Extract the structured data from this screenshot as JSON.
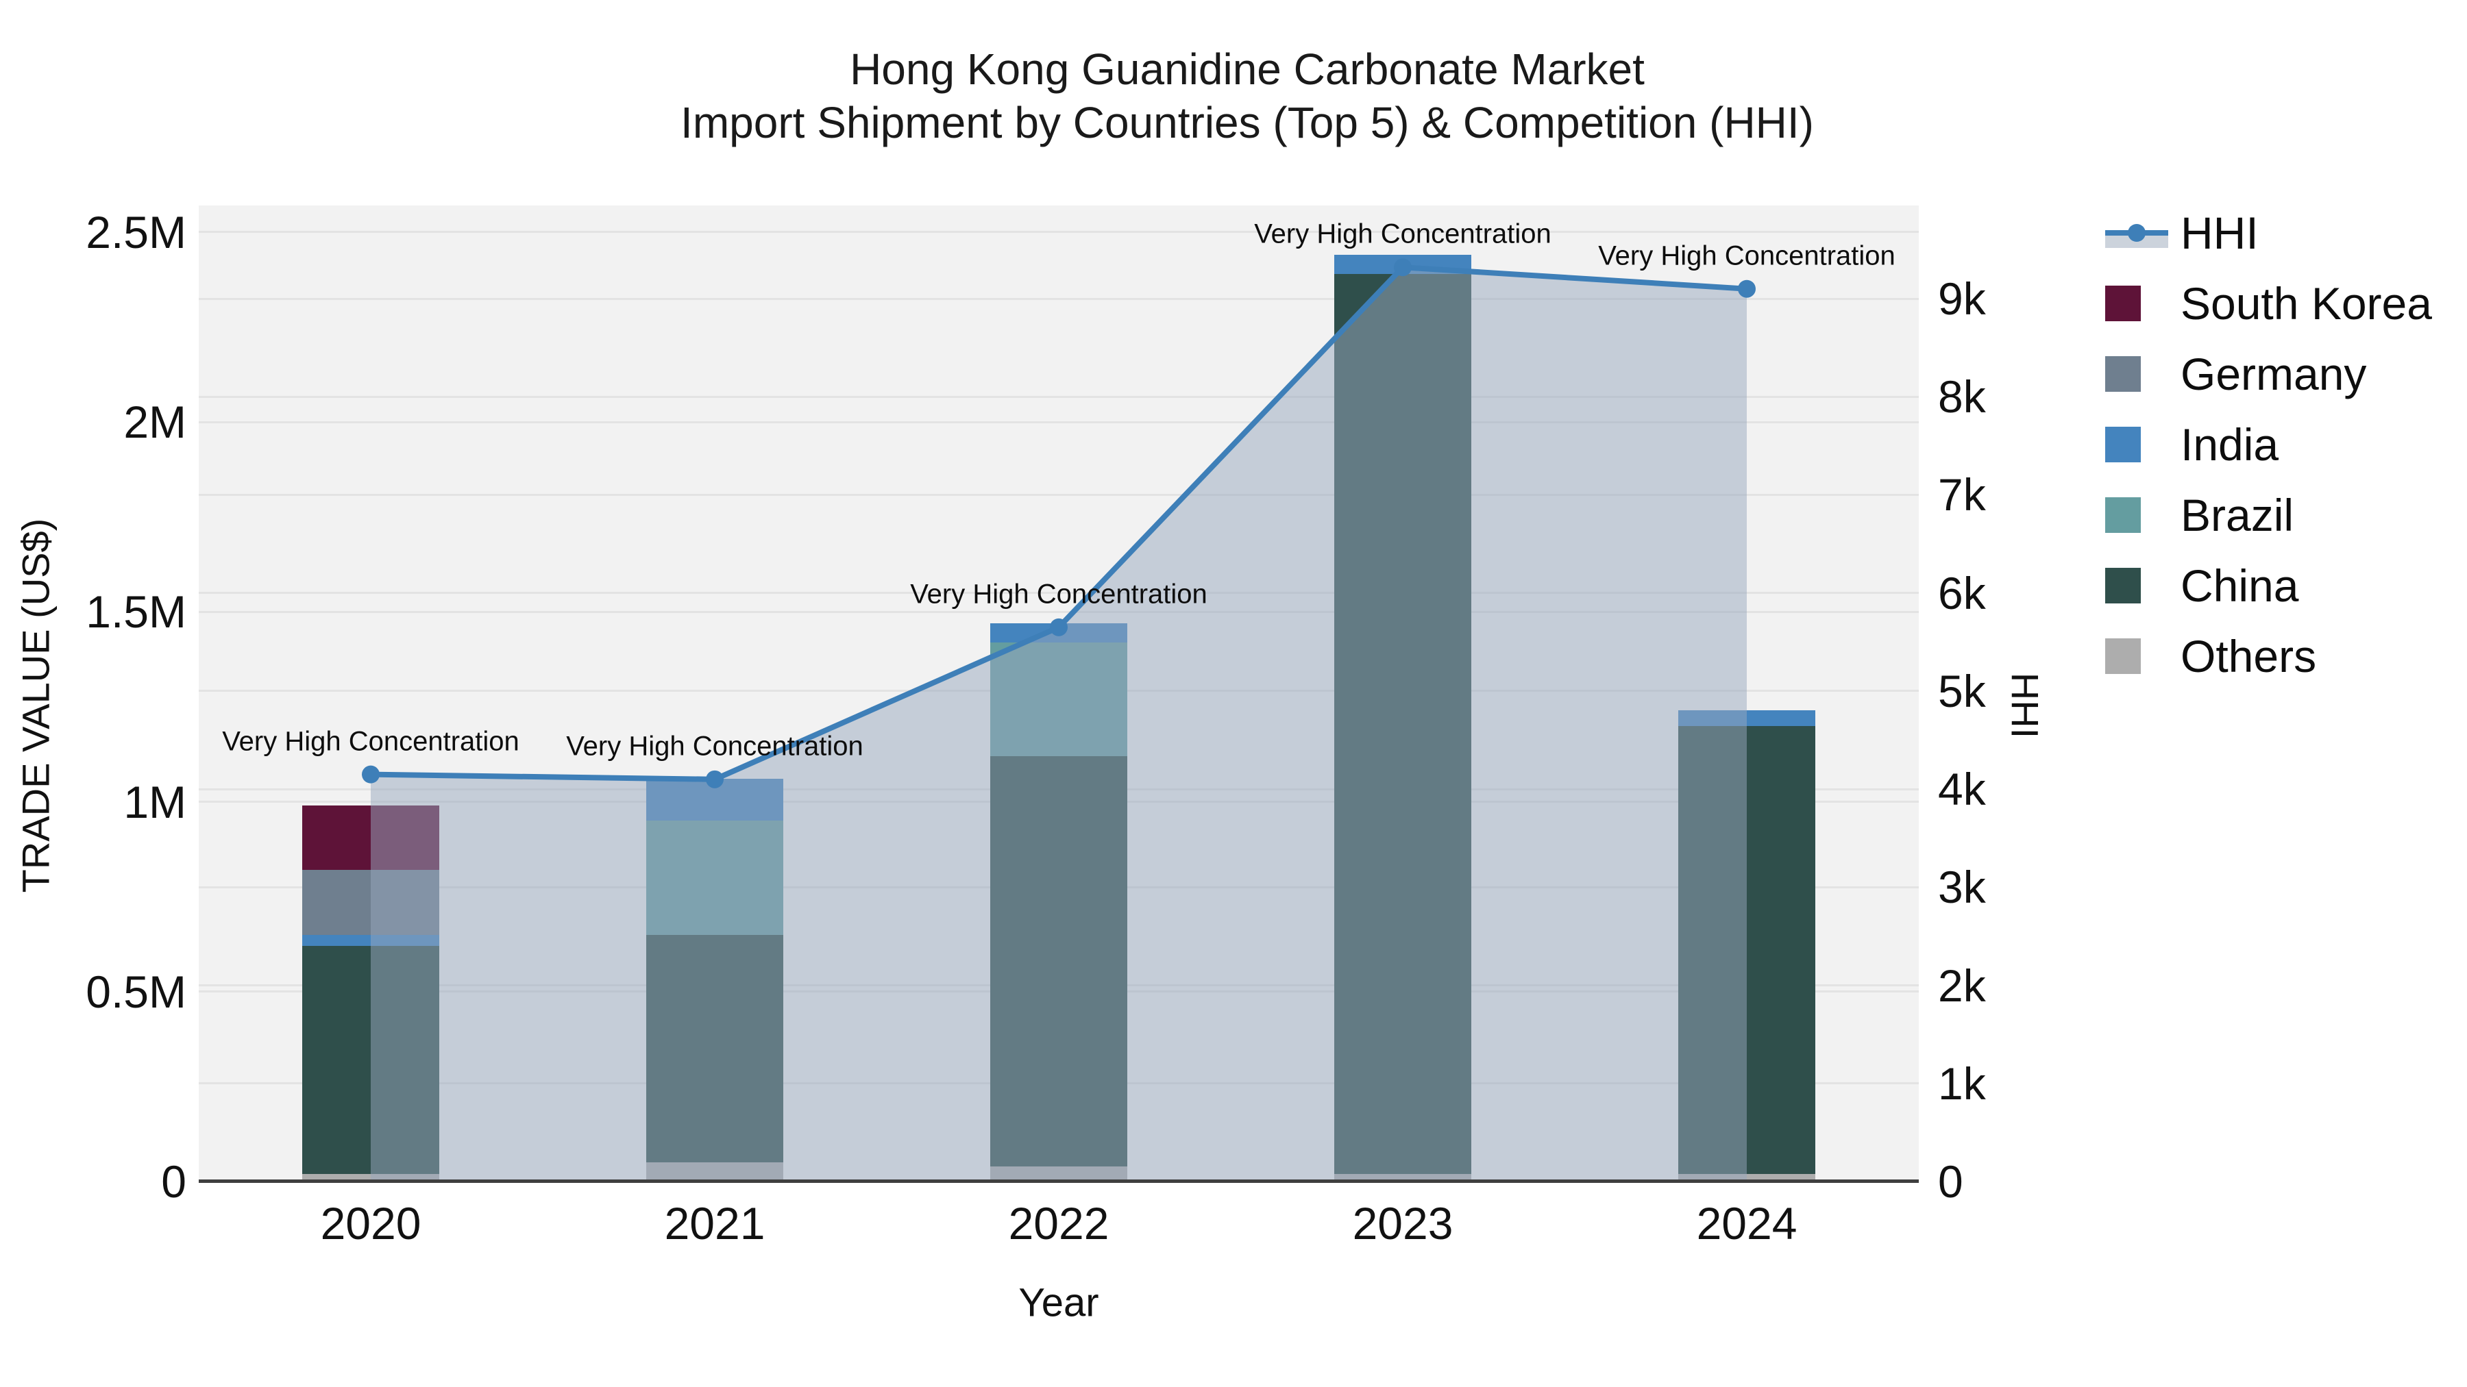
{
  "title": {
    "line1": "Hong Kong Guanidine Carbonate Market",
    "line2": "Import Shipment by Countries (Top 5) & Competition (HHI)"
  },
  "axes": {
    "x_title": "Year",
    "y_left_title": "TRADE VALUE (US$)",
    "y_right_title": "HHI",
    "x_ticks": [
      "2020",
      "2021",
      "2022",
      "2023",
      "2024"
    ],
    "y_left_ticks": [
      {
        "label": "0",
        "value": 0
      },
      {
        "label": "0.5M",
        "value": 500000
      },
      {
        "label": "1M",
        "value": 1000000
      },
      {
        "label": "1.5M",
        "value": 1500000
      },
      {
        "label": "2M",
        "value": 2000000
      },
      {
        "label": "2.5M",
        "value": 2500000
      }
    ],
    "y_right_ticks": [
      {
        "label": "0",
        "value": 0
      },
      {
        "label": "1k",
        "value": 1000
      },
      {
        "label": "2k",
        "value": 2000
      },
      {
        "label": "3k",
        "value": 3000
      },
      {
        "label": "4k",
        "value": 4000
      },
      {
        "label": "5k",
        "value": 5000
      },
      {
        "label": "6k",
        "value": 6000
      },
      {
        "label": "7k",
        "value": 7000
      },
      {
        "label": "8k",
        "value": 8000
      },
      {
        "label": "9k",
        "value": 9000
      }
    ]
  },
  "legend": {
    "items": [
      {
        "label": "HHI",
        "color": "#3e7fb8",
        "kind": "line"
      },
      {
        "label": "South Korea",
        "color": "#5e1338",
        "kind": "square"
      },
      {
        "label": "Germany",
        "color": "#6f7f8f",
        "kind": "square"
      },
      {
        "label": "India",
        "color": "#4484be",
        "kind": "square"
      },
      {
        "label": "Brazil",
        "color": "#649da0",
        "kind": "square"
      },
      {
        "label": "China",
        "color": "#2f4f4b",
        "kind": "square"
      },
      {
        "label": "Others",
        "color": "#adadad",
        "kind": "square"
      }
    ]
  },
  "colors": {
    "plot_background": "#f2f2f2",
    "gridline": "#e3e3e3",
    "axis_line": "#3f3f3f",
    "hhi_line": "#3e7fb8",
    "hhi_area_fill": "rgba(152,167,190,0.5)",
    "text": "#111111"
  },
  "chart_data": {
    "type": "bar",
    "subtype": "stacked-bars-with-secondary-axis-area-line",
    "title": "Hong Kong Guanidine Carbonate Market — Import Shipment by Countries (Top 5) & Competition (HHI)",
    "xlabel": "Year",
    "ylabel_left": "TRADE VALUE (US$)",
    "ylabel_right": "HHI",
    "categories": [
      "2020",
      "2021",
      "2022",
      "2023",
      "2024"
    ],
    "bar_series_bottom_to_top": [
      {
        "name": "Others",
        "axis": "left",
        "color": "#adadad",
        "values": [
          20000,
          50000,
          40000,
          20000,
          20000
        ]
      },
      {
        "name": "China",
        "axis": "left",
        "color": "#2f4f4b",
        "values": [
          600000,
          600000,
          1080000,
          2370000,
          1180000
        ]
      },
      {
        "name": "Brazil",
        "axis": "left",
        "color": "#649da0",
        "values": [
          0,
          300000,
          300000,
          0,
          0
        ]
      },
      {
        "name": "India",
        "axis": "left",
        "color": "#4484be",
        "values": [
          30000,
          110000,
          50000,
          50000,
          40000
        ]
      },
      {
        "name": "Germany",
        "axis": "left",
        "color": "#6f7f8f",
        "values": [
          170000,
          0,
          0,
          0,
          0
        ]
      },
      {
        "name": "South Korea",
        "axis": "left",
        "color": "#5e1338",
        "values": [
          170000,
          0,
          0,
          0,
          0
        ]
      }
    ],
    "bar_totals": [
      990000,
      1060000,
      1470000,
      2440000,
      1240000
    ],
    "line_series": {
      "name": "HHI",
      "axis": "right",
      "color": "#3e7fb8",
      "area_fill": "rgba(152,167,190,0.5)",
      "values": [
        4150,
        4100,
        5650,
        9320,
        9100
      ]
    },
    "annotations": [
      {
        "x": "2020",
        "text": "Very High Concentration"
      },
      {
        "x": "2021",
        "text": "Very High Concentration"
      },
      {
        "x": "2022",
        "text": "Very High Concentration"
      },
      {
        "x": "2023",
        "text": "Very High Concentration"
      },
      {
        "x": "2024",
        "text": "Very High Concentration"
      }
    ],
    "ylim_left": [
      0,
      2570000
    ],
    "ylim_right": [
      0,
      9950
    ],
    "grid": true,
    "legend_position": "right"
  }
}
